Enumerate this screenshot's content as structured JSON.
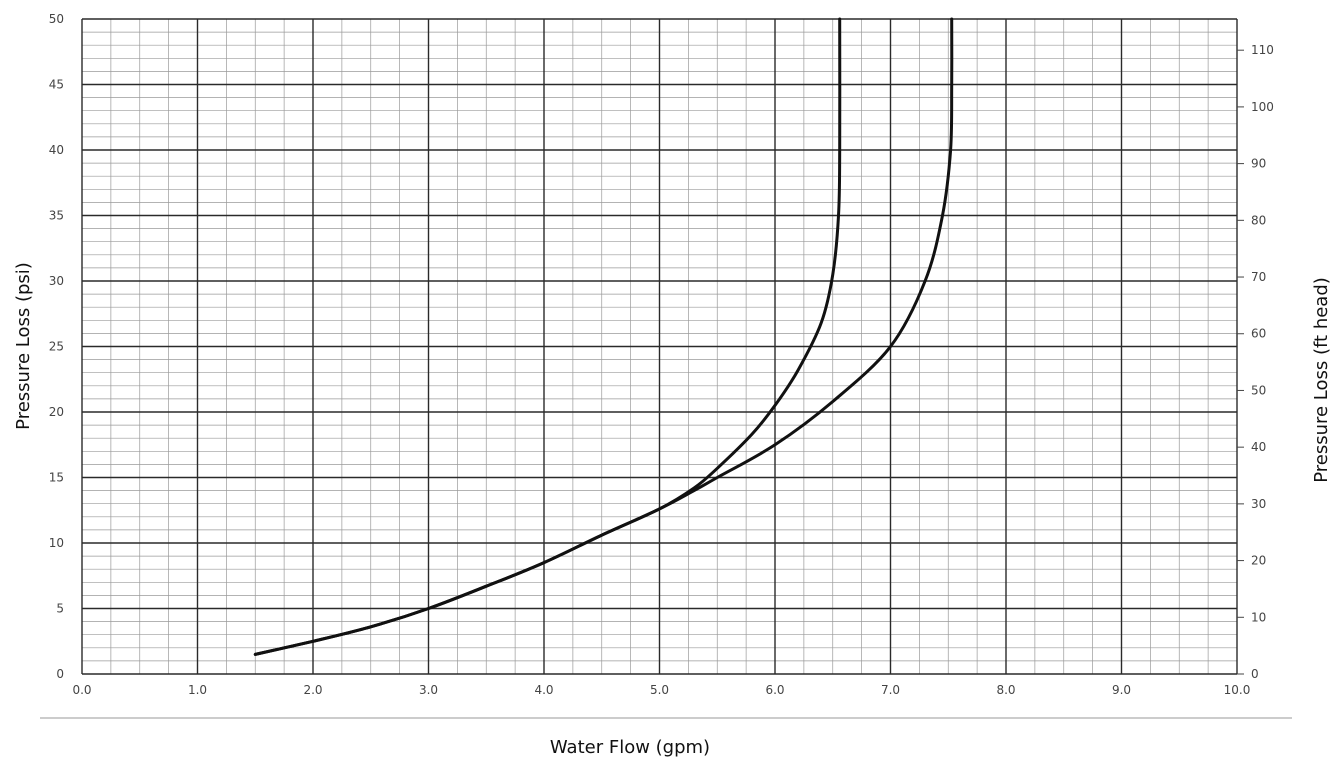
{
  "chart_data": {
    "type": "line",
    "xlabel": "Water Flow (gpm)",
    "ylabel": "Pressure Loss (psi)",
    "y2label": "Pressure Loss (ft head)",
    "xlim": [
      0,
      10
    ],
    "ylim": [
      0,
      50
    ],
    "y2lim": [
      0,
      115.5
    ],
    "x_ticks": [
      "0.0",
      "1.0",
      "2.0",
      "3.0",
      "4.0",
      "5.0",
      "6.0",
      "7.0",
      "8.0",
      "9.0",
      "10.0"
    ],
    "y_ticks": [
      "0",
      "5",
      "10",
      "15",
      "20",
      "25",
      "30",
      "35",
      "40",
      "45",
      "50"
    ],
    "y2_ticks": [
      "0",
      "10",
      "20",
      "30",
      "40",
      "50",
      "60",
      "70",
      "80",
      "90",
      "100",
      "110"
    ],
    "grid": true,
    "series": [
      {
        "x": [
          1.5,
          2.0,
          2.5,
          3.0,
          3.5,
          4.0,
          4.5,
          5.0,
          5.3,
          5.5,
          5.8,
          6.0,
          6.2,
          6.4,
          6.5,
          6.55,
          6.56,
          6.56
        ],
        "y": [
          1.5,
          2.5,
          3.6,
          5.0,
          6.7,
          8.5,
          10.6,
          12.6,
          14.2,
          15.7,
          18.3,
          20.5,
          23.2,
          26.8,
          30.5,
          35.0,
          40.0,
          50.0
        ]
      },
      {
        "x": [
          1.5,
          2.0,
          2.5,
          3.0,
          3.5,
          4.0,
          4.5,
          5.0,
          5.3,
          5.5,
          6.0,
          6.5,
          7.0,
          7.3,
          7.45,
          7.52,
          7.53,
          7.53
        ],
        "y": [
          1.5,
          2.5,
          3.6,
          5.0,
          6.7,
          8.5,
          10.6,
          12.6,
          14.0,
          15.0,
          17.5,
          20.8,
          25.0,
          30.0,
          35.0,
          40.0,
          45.0,
          50.0
        ]
      }
    ]
  }
}
